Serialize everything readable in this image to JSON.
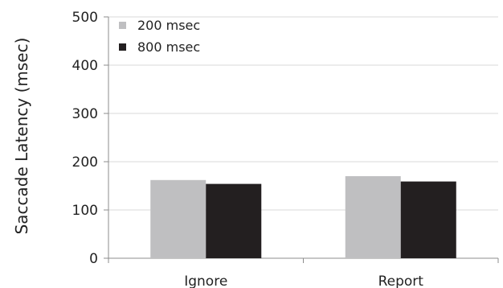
{
  "chart_data": {
    "type": "bar",
    "title": "",
    "xlabel": "",
    "ylabel": "Saccade Latency (msec)",
    "ylim": [
      0,
      500
    ],
    "yticks": [
      0,
      100,
      200,
      300,
      400,
      500
    ],
    "grid": true,
    "legend_position": "top-left",
    "categories": [
      "Ignore",
      "Report"
    ],
    "series": [
      {
        "name": "200 msec",
        "color": "#bfbfc1",
        "values": [
          162,
          170
        ]
      },
      {
        "name": "800 msec",
        "color": "#231f20",
        "values": [
          154,
          159
        ]
      }
    ]
  }
}
